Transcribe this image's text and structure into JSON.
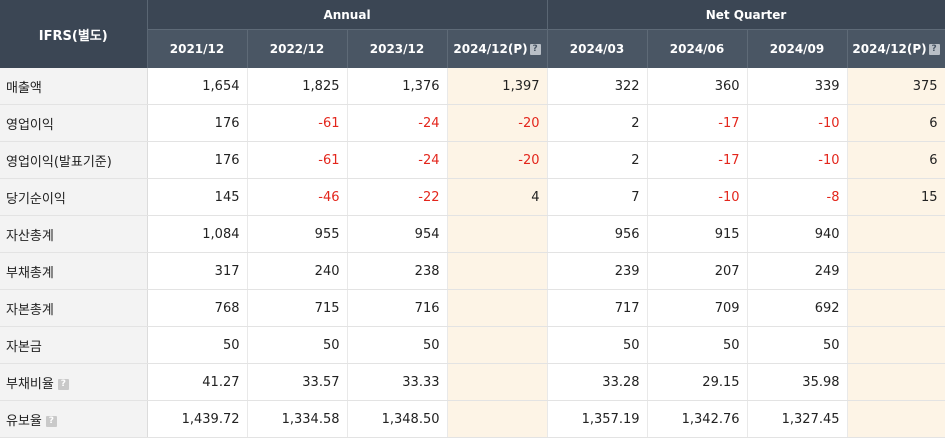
{
  "header": {
    "corner": "IFRS(별도)",
    "annual_label": "Annual",
    "quarter_label": "Net Quarter",
    "annual_periods": [
      "2021/12",
      "2022/12",
      "2023/12",
      "2024/12(P)"
    ],
    "quarter_periods": [
      "2024/03",
      "2024/06",
      "2024/09",
      "2024/12(P)"
    ],
    "help_icon": "question-mark-icon"
  },
  "rows": [
    {
      "label": "매출액",
      "values": [
        "1,654",
        "1,825",
        "1,376",
        "1,397",
        "322",
        "360",
        "339",
        "375"
      ]
    },
    {
      "label": "영업이익",
      "values": [
        "176",
        "-61",
        "-24",
        "-20",
        "2",
        "-17",
        "-10",
        "6"
      ]
    },
    {
      "label": "영업이익(발표기준)",
      "values": [
        "176",
        "-61",
        "-24",
        "-20",
        "2",
        "-17",
        "-10",
        "6"
      ]
    },
    {
      "label": "당기순이익",
      "values": [
        "145",
        "-46",
        "-22",
        "4",
        "7",
        "-10",
        "-8",
        "15"
      ]
    },
    {
      "label": "자산총계",
      "values": [
        "1,084",
        "955",
        "954",
        "",
        "956",
        "915",
        "940",
        ""
      ]
    },
    {
      "label": "부채총계",
      "values": [
        "317",
        "240",
        "238",
        "",
        "239",
        "207",
        "249",
        ""
      ]
    },
    {
      "label": "자본총계",
      "values": [
        "768",
        "715",
        "716",
        "",
        "717",
        "709",
        "692",
        ""
      ]
    },
    {
      "label": "자본금",
      "values": [
        "50",
        "50",
        "50",
        "",
        "50",
        "50",
        "50",
        ""
      ]
    },
    {
      "label": "부채비율",
      "values": [
        "41.27",
        "33.57",
        "33.33",
        "",
        "33.28",
        "29.15",
        "35.98",
        ""
      ]
    },
    {
      "label": "유보율",
      "values": [
        "1,439.72",
        "1,334.58",
        "1,348.50",
        "",
        "1,357.19",
        "1,342.76",
        "1,327.45",
        ""
      ]
    }
  ],
  "colors": {
    "header_dark": "#3b4654",
    "header_sub": "#4a5664",
    "estimate_bg": "#fdf4e6",
    "negative": "#e3261c",
    "label_bg": "#f3f3f3"
  }
}
